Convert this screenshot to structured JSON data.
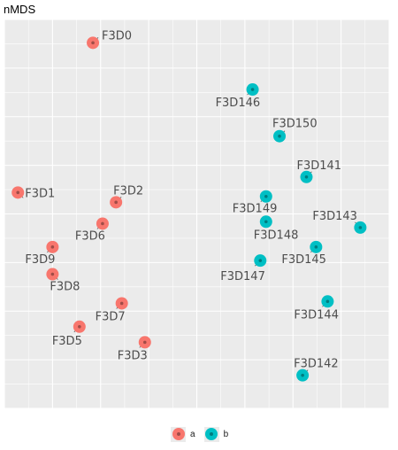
{
  "chart_data": {
    "type": "scatter",
    "title": "nMDS",
    "xlabel": "",
    "ylabel": "",
    "xlim": [
      -1.0,
      1.0
    ],
    "ylim": [
      -1.0,
      1.0
    ],
    "grid": true,
    "legend_position": "bottom",
    "series": [
      {
        "name": "a",
        "color": "#F8766D",
        "points": [
          {
            "label": "F3D0",
            "x": -0.54,
            "y": 0.88
          },
          {
            "label": "F3D1",
            "x": -0.93,
            "y": 0.11
          },
          {
            "label": "F3D2",
            "x": -0.42,
            "y": 0.06
          },
          {
            "label": "F3D6",
            "x": -0.49,
            "y": -0.05
          },
          {
            "label": "F3D9",
            "x": -0.75,
            "y": -0.17
          },
          {
            "label": "F3D8",
            "x": -0.75,
            "y": -0.31
          },
          {
            "label": "F3D7",
            "x": -0.39,
            "y": -0.46
          },
          {
            "label": "F3D5",
            "x": -0.61,
            "y": -0.58
          },
          {
            "label": "F3D3",
            "x": -0.27,
            "y": -0.66
          }
        ]
      },
      {
        "name": "b",
        "color": "#00BFC4",
        "points": [
          {
            "label": "F3D146",
            "x": 0.29,
            "y": 0.64
          },
          {
            "label": "F3D150",
            "x": 0.43,
            "y": 0.4
          },
          {
            "label": "F3D141",
            "x": 0.57,
            "y": 0.19
          },
          {
            "label": "F3D149",
            "x": 0.36,
            "y": 0.09
          },
          {
            "label": "F3D148",
            "x": 0.36,
            "y": -0.04
          },
          {
            "label": "F3D143",
            "x": 0.85,
            "y": -0.07
          },
          {
            "label": "F3D145",
            "x": 0.62,
            "y": -0.17
          },
          {
            "label": "F3D147",
            "x": 0.33,
            "y": -0.24
          },
          {
            "label": "F3D144",
            "x": 0.68,
            "y": -0.45
          },
          {
            "label": "F3D142",
            "x": 0.55,
            "y": -0.83
          }
        ]
      }
    ]
  }
}
